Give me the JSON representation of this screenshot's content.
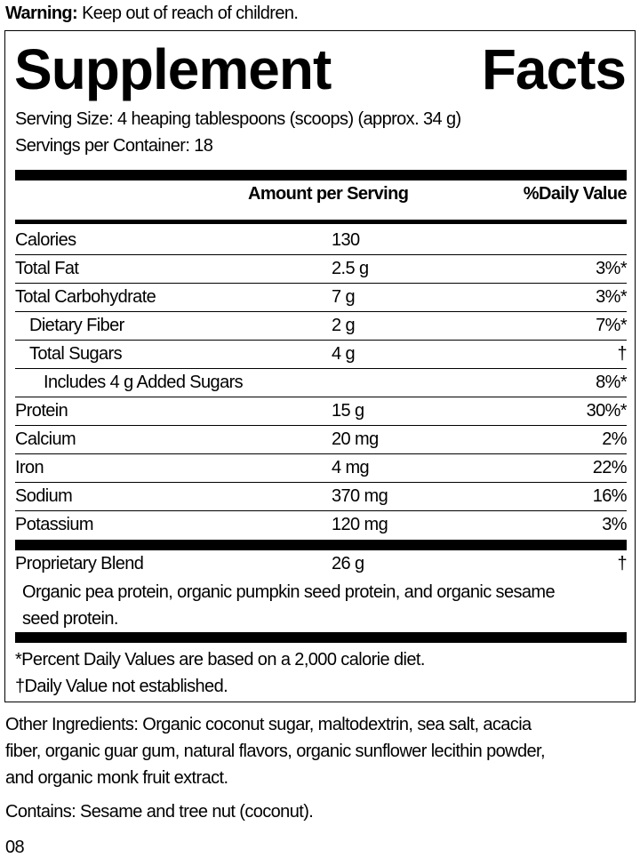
{
  "warning": {
    "label": "Warning:",
    "text": " Keep out of reach of children."
  },
  "title": [
    "Supplement",
    "Facts"
  ],
  "serving_size": "Serving Size: 4 heaping tablespoons (scoops) (approx. 34 g)",
  "servings_per_container": "Servings per Container: 18",
  "header": {
    "amount": "Amount per Serving",
    "dv": "%Daily Value"
  },
  "rows": [
    {
      "name": "Calories",
      "amount": "130",
      "dv": ""
    },
    {
      "name": "Total Fat",
      "amount": "2.5 g",
      "dv": "3%*"
    },
    {
      "name": "Total Carbohydrate",
      "amount": "7 g",
      "dv": "3%*"
    },
    {
      "name": "Dietary Fiber",
      "amount": "2 g",
      "dv": "7%*"
    },
    {
      "name": "Total Sugars",
      "amount": "4 g",
      "dv": "†"
    },
    {
      "name": "Includes 4 g Added Sugars",
      "amount": "",
      "dv": "8%*"
    },
    {
      "name": "Protein",
      "amount": "15 g",
      "dv": "30%*"
    },
    {
      "name": "Calcium",
      "amount": "20 mg",
      "dv": "2%"
    },
    {
      "name": "Iron",
      "amount": "4 mg",
      "dv": "22%"
    },
    {
      "name": "Sodium",
      "amount": "370 mg",
      "dv": "16%"
    },
    {
      "name": "Potassium",
      "amount": "120 mg",
      "dv": "3%"
    }
  ],
  "blend": {
    "name": "Proprietary Blend",
    "amount": "26 g",
    "dv": "†",
    "line1": "Organic pea protein, organic pumpkin seed protein, and organic sesame",
    "line2": "seed protein."
  },
  "footnotes": [
    "*Percent Daily Values are based on a 2,000 calorie diet.",
    "†Daily Value not established."
  ],
  "other_ingredients": [
    "Other Ingredients: Organic coconut sugar, maltodextrin, sea salt, acacia",
    "fiber, organic guar gum, natural flavors, organic sunflower lecithin powder,",
    "and organic monk fruit extract."
  ],
  "contains": "Contains: Sesame and tree nut (coconut).",
  "code": "08"
}
